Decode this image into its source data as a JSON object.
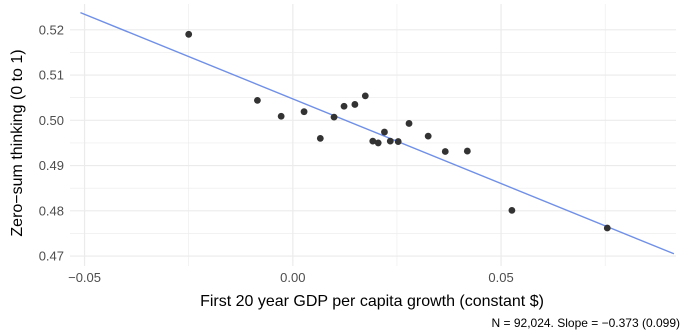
{
  "chart_data": {
    "type": "scatter",
    "xlabel": "First 20 year GDP per capita growth (constant $)",
    "ylabel": "Zero−sum thinking (0 to 1)",
    "caption": "N = 92,024. Slope = −0.373 (0.099)",
    "xlim": [
      -0.0535,
      0.092
    ],
    "ylim": [
      0.4678,
      0.5257
    ],
    "x_ticks": [
      {
        "value": -0.05,
        "label": "−0.05"
      },
      {
        "value": 0.0,
        "label": "0.00"
      },
      {
        "value": 0.05,
        "label": "0.05"
      }
    ],
    "y_ticks": [
      {
        "value": 0.47,
        "label": "0.47"
      },
      {
        "value": 0.48,
        "label": "0.48"
      },
      {
        "value": 0.49,
        "label": "0.49"
      },
      {
        "value": 0.5,
        "label": "0.50"
      },
      {
        "value": 0.51,
        "label": "0.51"
      },
      {
        "value": 0.52,
        "label": "0.52"
      }
    ],
    "grid": true,
    "points": [
      {
        "x": -0.025,
        "y": 0.519
      },
      {
        "x": -0.0085,
        "y": 0.5044
      },
      {
        "x": -0.0028,
        "y": 0.5009
      },
      {
        "x": 0.0027,
        "y": 0.5019
      },
      {
        "x": 0.0066,
        "y": 0.496
      },
      {
        "x": 0.0099,
        "y": 0.5007
      },
      {
        "x": 0.0123,
        "y": 0.5031
      },
      {
        "x": 0.0149,
        "y": 0.5035
      },
      {
        "x": 0.0174,
        "y": 0.5054
      },
      {
        "x": 0.0192,
        "y": 0.4954
      },
      {
        "x": 0.0205,
        "y": 0.495
      },
      {
        "x": 0.022,
        "y": 0.4974
      },
      {
        "x": 0.0234,
        "y": 0.4954
      },
      {
        "x": 0.0253,
        "y": 0.4953
      },
      {
        "x": 0.0279,
        "y": 0.4993
      },
      {
        "x": 0.0325,
        "y": 0.4965
      },
      {
        "x": 0.0366,
        "y": 0.4931
      },
      {
        "x": 0.0419,
        "y": 0.4932
      },
      {
        "x": 0.0526,
        "y": 0.4801
      },
      {
        "x": 0.0755,
        "y": 0.4762
      }
    ],
    "fit_line": {
      "x": [
        -0.051,
        0.0915
      ],
      "y": [
        0.5238,
        0.4705
      ]
    },
    "colors": {
      "points": "#333333",
      "fit_line": "#6f8fe8",
      "grid": "#ebebeb"
    }
  }
}
